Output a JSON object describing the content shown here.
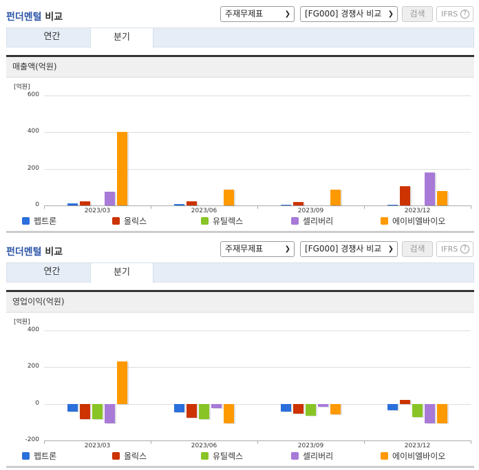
{
  "sections": [
    {
      "title_part1": "펀더멘털",
      "title_part2": " 비교",
      "select1": {
        "value": "주재무제표"
      },
      "select2": {
        "value": "[FG000] 경쟁사 비교"
      },
      "search_label": "검색",
      "ifrs_label": "IFRS",
      "help_icon": "?",
      "tabs": [
        {
          "label": "연간"
        },
        {
          "label": "분기",
          "active": true
        }
      ],
      "panel_title": "매출액(억원)",
      "unit": "[억원]"
    },
    {
      "title_part1": "펀더멘털",
      "title_part2": " 비교",
      "select1": {
        "value": "주재무제표"
      },
      "select2": {
        "value": "[FG000] 경쟁사 비교"
      },
      "search_label": "검색",
      "ifrs_label": "IFRS",
      "help_icon": "?",
      "tabs": [
        {
          "label": "연간"
        },
        {
          "label": "분기",
          "active": true
        }
      ],
      "panel_title": "영업이익(억원)",
      "unit": "[억원]"
    }
  ],
  "legend": [
    {
      "name": "펩트론",
      "color": "#2a6fdb"
    },
    {
      "name": "올릭스",
      "color": "#cc3300"
    },
    {
      "name": "유틸렉스",
      "color": "#88c425"
    },
    {
      "name": "셀리버리",
      "color": "#a77ad8"
    },
    {
      "name": "에이비엘바이오",
      "color": "#ff9900"
    }
  ],
  "chart_data": [
    {
      "type": "bar",
      "title": "매출액(억원)",
      "ylabel": "[억원]",
      "xlabel": "",
      "categories": [
        "2023/03",
        "2023/06",
        "2023/09",
        "2023/12"
      ],
      "ylim": [
        0,
        600
      ],
      "yticks": [
        0,
        200,
        400,
        600
      ],
      "grid": true,
      "legend_position": "bottom",
      "series": [
        {
          "name": "펩트론",
          "color": "#2a6fdb",
          "values": [
            10,
            6,
            4,
            4
          ]
        },
        {
          "name": "올릭스",
          "color": "#cc3300",
          "values": [
            22,
            22,
            18,
            104
          ]
        },
        {
          "name": "유틸렉스",
          "color": "#88c425",
          "values": [
            0,
            0,
            0,
            0
          ]
        },
        {
          "name": "셀리버리",
          "color": "#a77ad8",
          "values": [
            75,
            0,
            0,
            180
          ]
        },
        {
          "name": "에이비엘바이오",
          "color": "#ff9900",
          "values": [
            400,
            86,
            86,
            78
          ]
        }
      ]
    },
    {
      "type": "bar",
      "title": "영업이익(억원)",
      "ylabel": "[억원]",
      "xlabel": "",
      "categories": [
        "2023/03",
        "2023/06",
        "2023/09",
        "2023/12"
      ],
      "ylim": [
        -200,
        400
      ],
      "yticks": [
        -200,
        0,
        200,
        400
      ],
      "grid": true,
      "legend_position": "bottom",
      "series": [
        {
          "name": "펩트론",
          "color": "#2a6fdb",
          "values": [
            -42,
            -48,
            -44,
            -34
          ]
        },
        {
          "name": "올릭스",
          "color": "#cc3300",
          "values": [
            -82,
            -76,
            -52,
            20
          ]
        },
        {
          "name": "유틸렉스",
          "color": "#88c425",
          "values": [
            -82,
            -84,
            -64,
            -72
          ]
        },
        {
          "name": "셀리버리",
          "color": "#a77ad8",
          "values": [
            -105,
            -22,
            -18,
            -105
          ]
        },
        {
          "name": "에이비엘바이오",
          "color": "#ff9900",
          "values": [
            232,
            -105,
            -56,
            -105
          ]
        }
      ]
    }
  ]
}
